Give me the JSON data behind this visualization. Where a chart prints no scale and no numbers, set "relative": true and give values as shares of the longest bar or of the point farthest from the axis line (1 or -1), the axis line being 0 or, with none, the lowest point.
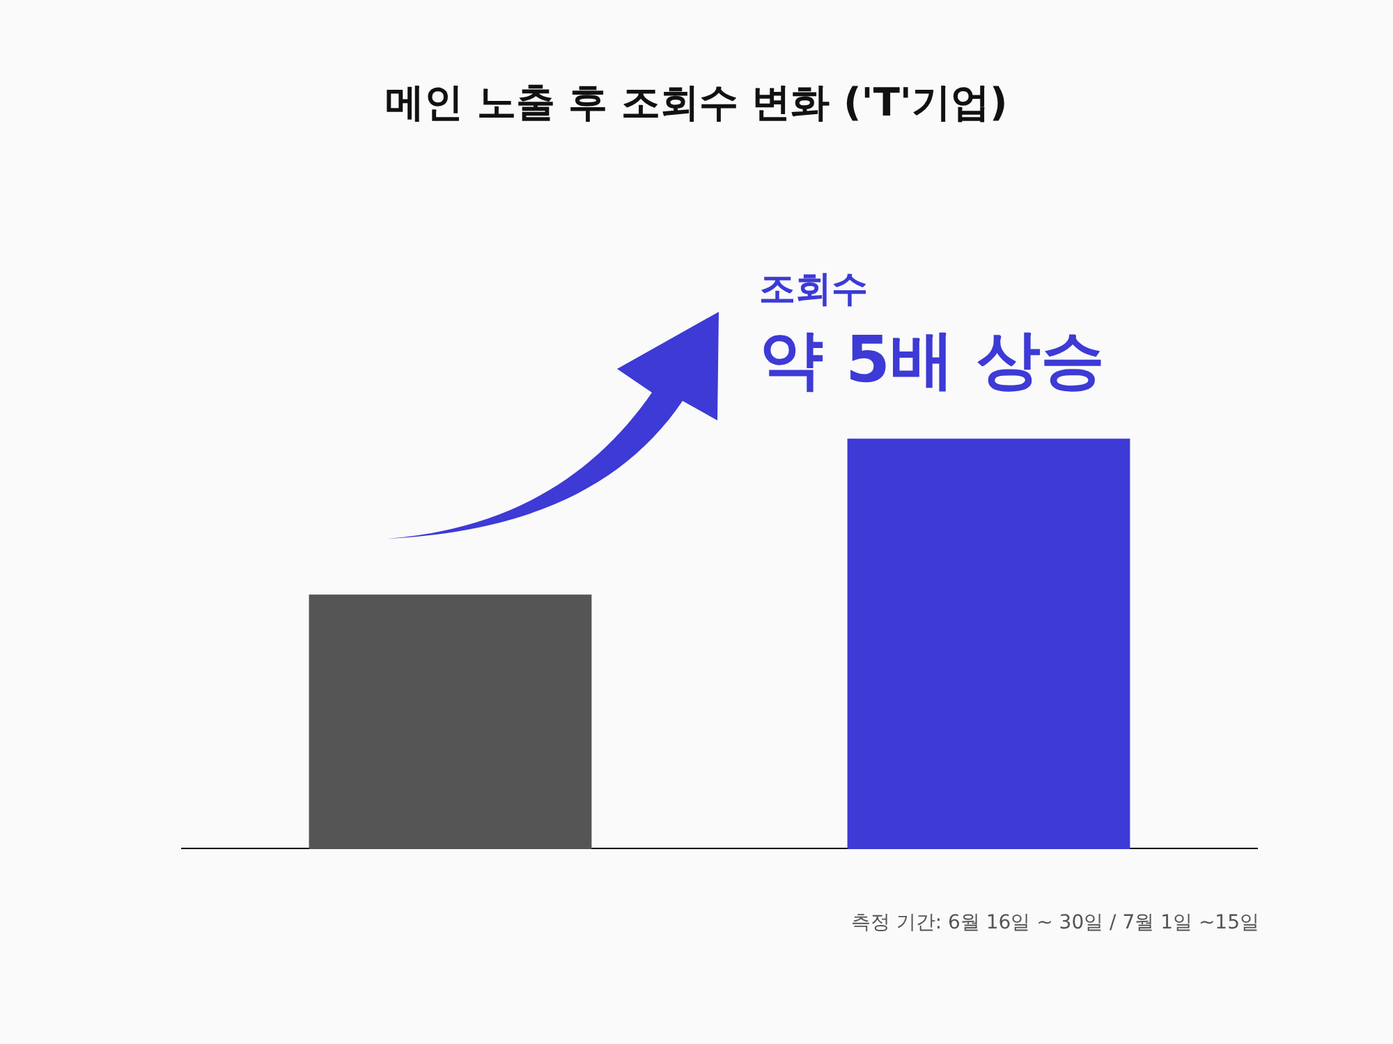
{
  "chart_data": {
    "type": "bar",
    "title": "메인 노출 후 조회수 변화 ('T'기업)",
    "categories": [
      null,
      null
    ],
    "values": [
      0.62,
      1
    ],
    "colors": [
      "#555555",
      "#3d3ad6"
    ],
    "relative": true,
    "grid": false,
    "legend": false,
    "annotations": [
      "조회수",
      "약 5배 상승",
      "측정 기간: 6월 16일 ~ 30일 / 7월 1일 ~15일"
    ]
  }
}
